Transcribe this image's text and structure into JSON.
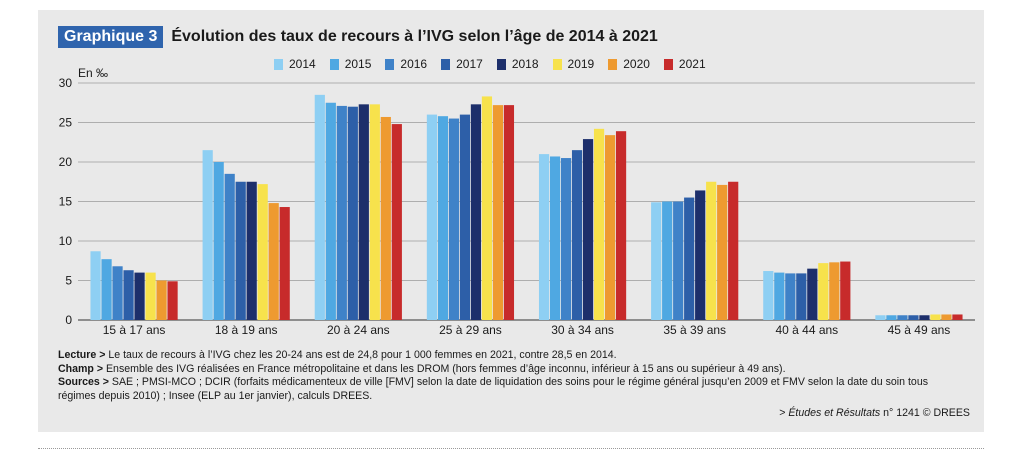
{
  "header": {
    "tag": "Graphique 3",
    "title": "Évolution des taux de recours à l’IVG selon l’âge de 2014 à 2021"
  },
  "chart_data": {
    "type": "bar",
    "ylabel": "En ‰",
    "ylim": [
      0,
      30
    ],
    "yticks": [
      0,
      5,
      10,
      15,
      20,
      25,
      30
    ],
    "grid": true,
    "legend_position": "top",
    "categories": [
      "15 à 17 ans",
      "18 à 19 ans",
      "20 à 24 ans",
      "25 à 29 ans",
      "30 à 34 ans",
      "35 à 39 ans",
      "40 à 44 ans",
      "45 à 49 ans"
    ],
    "series": [
      {
        "name": "2014",
        "color": "#8ecff3",
        "values": [
          8.7,
          21.5,
          28.5,
          26.0,
          21.0,
          14.9,
          6.2,
          0.6
        ]
      },
      {
        "name": "2015",
        "color": "#4fa8e2",
        "values": [
          7.7,
          20.0,
          27.5,
          25.8,
          20.7,
          15.0,
          6.0,
          0.6
        ]
      },
      {
        "name": "2016",
        "color": "#3f82c8",
        "values": [
          6.8,
          18.5,
          27.1,
          25.5,
          20.5,
          15.0,
          5.9,
          0.6
        ]
      },
      {
        "name": "2017",
        "color": "#2d5fa8",
        "values": [
          6.3,
          17.5,
          27.0,
          26.0,
          21.5,
          15.5,
          5.9,
          0.6
        ]
      },
      {
        "name": "2018",
        "color": "#1d2f6b",
        "values": [
          6.0,
          17.5,
          27.3,
          27.3,
          22.9,
          16.4,
          6.5,
          0.6
        ]
      },
      {
        "name": "2019",
        "color": "#f7e24c",
        "values": [
          6.0,
          17.2,
          27.3,
          28.3,
          24.2,
          17.5,
          7.2,
          0.7
        ]
      },
      {
        "name": "2020",
        "color": "#ee9a30",
        "values": [
          5.0,
          14.8,
          25.7,
          27.2,
          23.4,
          17.1,
          7.3,
          0.7
        ]
      },
      {
        "name": "2021",
        "color": "#c72b2b",
        "values": [
          4.9,
          14.3,
          24.8,
          27.2,
          23.9,
          17.5,
          7.4,
          0.7
        ]
      }
    ]
  },
  "notes": {
    "lecture_label": "Lecture >",
    "lecture_text": " Le taux de recours à l’IVG chez les 20-24 ans est de 24,8 pour 1 000 femmes en 2021, contre 28,5 en 2014.",
    "champ_label": "Champ >",
    "champ_text": " Ensemble des IVG réalisées en France métropolitaine et dans les DROM (hors femmes d’âge inconnu, inférieur à 15 ans ou supérieur à 49 ans).",
    "sources_label": "Sources >",
    "sources_text": " SAE ; PMSI-MCO ; DCIR (forfaits médicamenteux de ville [FMV] selon la date de liquidation des soins pour le régime général jusqu’en 2009 et FMV selon la date du soin tous régimes depuis 2010) ; Insee (ELP au 1er janvier), calculs DREES."
  },
  "source": {
    "prefix": "> ",
    "publication": "Études et Résultats",
    "suffix": " n° 1241 © DREES"
  }
}
